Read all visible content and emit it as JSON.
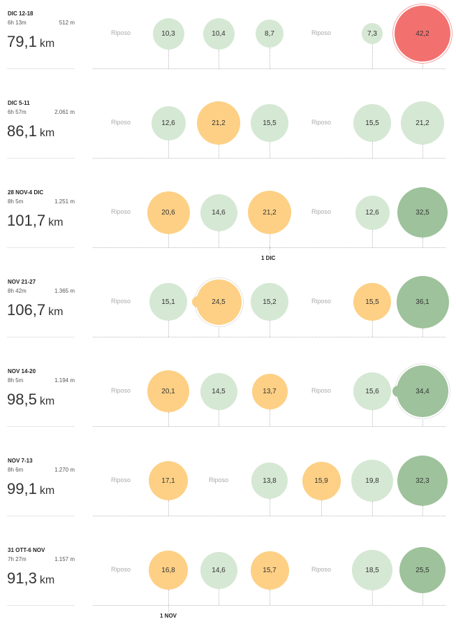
{
  "rest_label": "Riposo",
  "distance_unit": "km",
  "colors": {
    "light_green": "#d5e8d4",
    "orange": "#fdd085",
    "dark_green": "#9ec29b",
    "red": "#f2716f",
    "rest_text": "#aaaaaa"
  },
  "month_markers": [
    {
      "label": "1 DIC",
      "after_week": 2,
      "day_index": 3
    },
    {
      "label": "1 NOV",
      "after_week": 6,
      "day_index": 1
    }
  ],
  "weeks": [
    {
      "label": "DIC 12-18",
      "time": "6h 13m",
      "elevation": "512 m",
      "total": "79,1",
      "days": [
        {
          "type": "rest"
        },
        {
          "value": "10,3",
          "km": 10.3,
          "tone": "light"
        },
        {
          "value": "10,4",
          "km": 10.4,
          "tone": "light"
        },
        {
          "value": "8,7",
          "km": 8.7,
          "tone": "light"
        },
        {
          "type": "rest"
        },
        {
          "value": "7,3",
          "km": 7.3,
          "tone": "light"
        },
        {
          "value": "42,2",
          "km": 42.2,
          "tone": "red"
        }
      ]
    },
    {
      "label": "DIC 5-11",
      "time": "6h 57m",
      "elevation": "2.061 m",
      "total": "86,1",
      "days": [
        {
          "type": "rest"
        },
        {
          "value": "12,6",
          "km": 12.6,
          "tone": "light"
        },
        {
          "value": "21,2",
          "km": 21.2,
          "tone": "orange"
        },
        {
          "value": "15,5",
          "km": 15.5,
          "tone": "light"
        },
        {
          "type": "rest"
        },
        {
          "value": "15,5",
          "km": 15.5,
          "tone": "light"
        },
        {
          "value": "21,2",
          "km": 21.2,
          "tone": "light"
        }
      ]
    },
    {
      "label": "28 NOV-4 DIC",
      "time": "8h 5m",
      "elevation": "1.251 m",
      "total": "101,7",
      "days": [
        {
          "type": "rest"
        },
        {
          "value": "20,6",
          "km": 20.6,
          "tone": "orange"
        },
        {
          "value": "14,6",
          "km": 14.6,
          "tone": "light"
        },
        {
          "value": "21,2",
          "km": 21.2,
          "tone": "orange"
        },
        {
          "type": "rest"
        },
        {
          "value": "12,6",
          "km": 12.6,
          "tone": "light"
        },
        {
          "value": "32,5",
          "km": 32.5,
          "tone": "dark"
        }
      ]
    },
    {
      "label": "NOV 21-27",
      "time": "8h 42m",
      "elevation": "1.365 m",
      "total": "106,7",
      "days": [
        {
          "type": "rest"
        },
        {
          "value": "15,1",
          "km": 15.1,
          "tone": "light"
        },
        {
          "value": "24,5",
          "km": 24.5,
          "tone": "orange",
          "multi": true
        },
        {
          "value": "15,2",
          "km": 15.2,
          "tone": "light"
        },
        {
          "type": "rest"
        },
        {
          "value": "15,5",
          "km": 15.5,
          "tone": "orange"
        },
        {
          "value": "36,1",
          "km": 36.1,
          "tone": "dark"
        }
      ]
    },
    {
      "label": "NOV 14-20",
      "time": "8h 5m",
      "elevation": "1.194 m",
      "total": "98,5",
      "days": [
        {
          "type": "rest"
        },
        {
          "value": "20,1",
          "km": 20.1,
          "tone": "orange"
        },
        {
          "value": "14,5",
          "km": 14.5,
          "tone": "light"
        },
        {
          "value": "13,7",
          "km": 13.7,
          "tone": "orange"
        },
        {
          "type": "rest"
        },
        {
          "value": "15,6",
          "km": 15.6,
          "tone": "light"
        },
        {
          "value": "34,4",
          "km": 34.4,
          "tone": "dark",
          "multi": true
        }
      ]
    },
    {
      "label": "NOV 7-13",
      "time": "8h 6m",
      "elevation": "1.270 m",
      "total": "99,1",
      "days": [
        {
          "type": "rest"
        },
        {
          "value": "17,1",
          "km": 17.1,
          "tone": "orange"
        },
        {
          "type": "rest"
        },
        {
          "value": "13,8",
          "km": 13.8,
          "tone": "light"
        },
        {
          "value": "15,9",
          "km": 15.9,
          "tone": "orange"
        },
        {
          "value": "19,8",
          "km": 19.8,
          "tone": "light"
        },
        {
          "value": "32,3",
          "km": 32.3,
          "tone": "dark"
        }
      ]
    },
    {
      "label": "31 OTT-6 NOV",
      "time": "7h 27m",
      "elevation": "1.157 m",
      "total": "91,3",
      "days": [
        {
          "type": "rest"
        },
        {
          "value": "16,8",
          "km": 16.8,
          "tone": "orange"
        },
        {
          "value": "14,6",
          "km": 14.6,
          "tone": "light"
        },
        {
          "value": "15,7",
          "km": 15.7,
          "tone": "orange"
        },
        {
          "type": "rest"
        },
        {
          "value": "18,5",
          "km": 18.5,
          "tone": "light"
        },
        {
          "value": "25,5",
          "km": 25.5,
          "tone": "dark"
        }
      ]
    }
  ]
}
